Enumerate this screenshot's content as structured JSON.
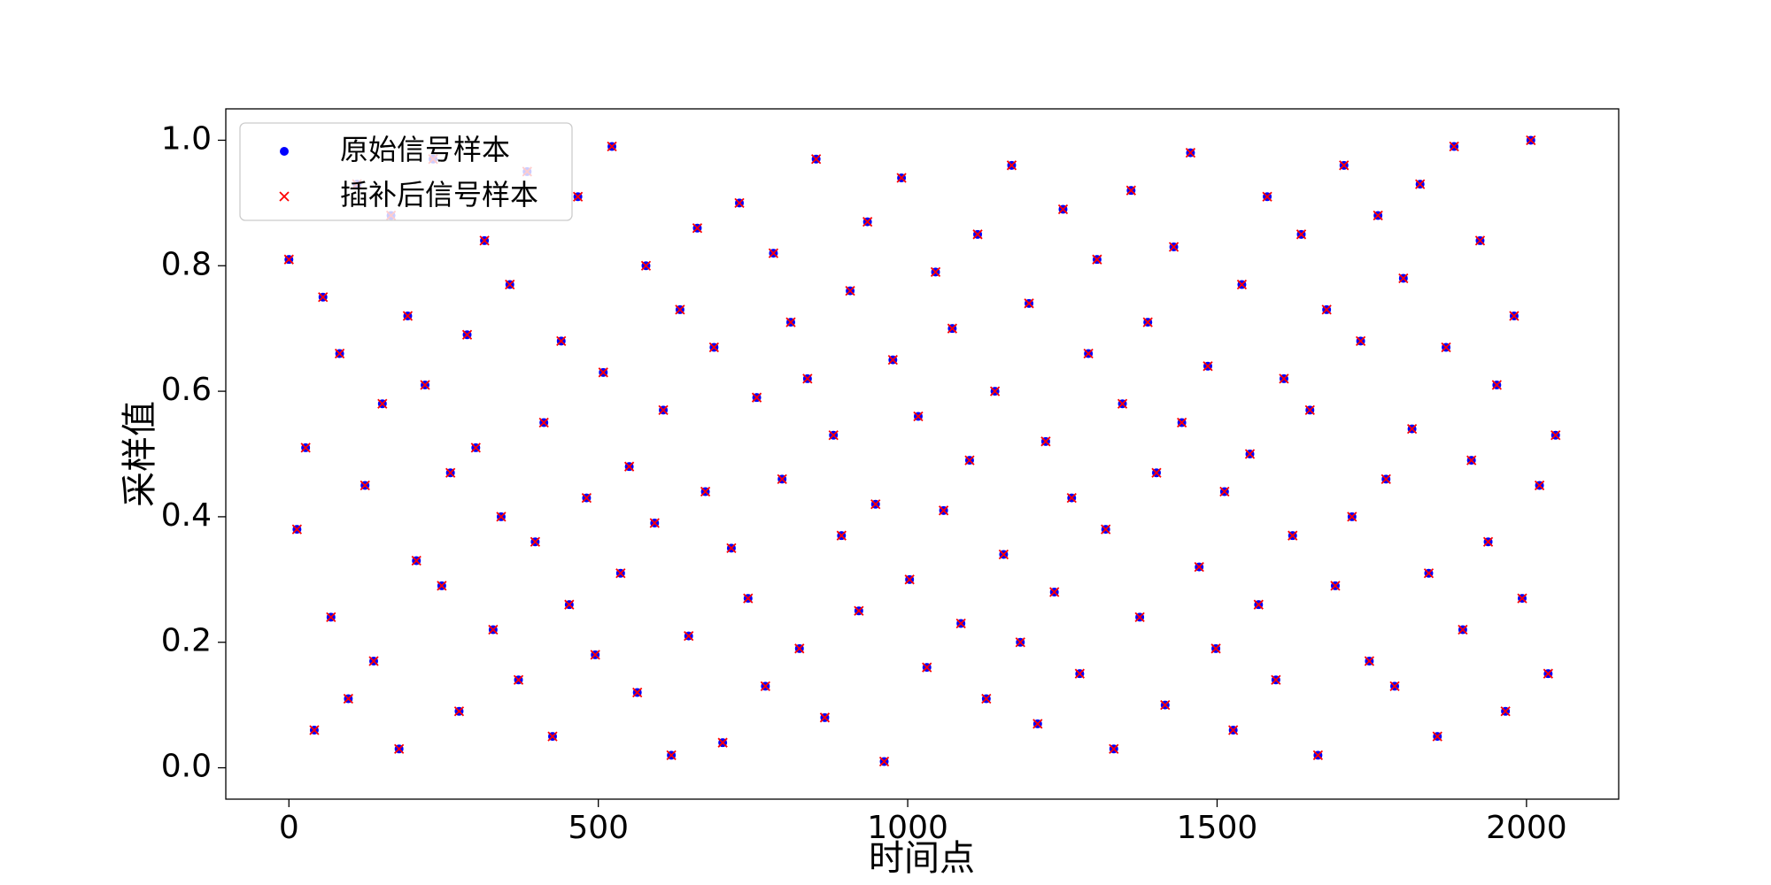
{
  "chart_data": {
    "type": "scatter",
    "xlabel": "时间点",
    "ylabel": "采样值",
    "x": [
      0,
      13,
      27,
      41,
      55,
      68,
      82,
      96,
      110,
      123,
      137,
      151,
      165,
      178,
      192,
      206,
      220,
      233,
      247,
      261,
      275,
      288,
      302,
      316,
      330,
      343,
      357,
      371,
      385,
      398,
      412,
      426,
      440,
      453,
      467,
      481,
      495,
      508,
      522,
      536,
      550,
      563,
      577,
      591,
      605,
      618,
      632,
      646,
      660,
      673,
      687,
      701,
      715,
      728,
      742,
      756,
      770,
      783,
      797,
      811,
      825,
      838,
      852,
      866,
      880,
      893,
      907,
      921,
      935,
      948,
      962,
      976,
      990,
      1003,
      1017,
      1031,
      1045,
      1058,
      1072,
      1086,
      1100,
      1113,
      1127,
      1141,
      1155,
      1168,
      1182,
      1196,
      1210,
      1223,
      1237,
      1251,
      1265,
      1278,
      1292,
      1306,
      1320,
      1333,
      1347,
      1361,
      1375,
      1388,
      1402,
      1416,
      1430,
      1443,
      1457,
      1471,
      1485,
      1498,
      1512,
      1526,
      1540,
      1553,
      1567,
      1581,
      1595,
      1608,
      1622,
      1636,
      1650,
      1663,
      1677,
      1691,
      1705,
      1718,
      1732,
      1746,
      1760,
      1773,
      1787,
      1801,
      1815,
      1828,
      1842,
      1856,
      1870,
      1883,
      1897,
      1911,
      1925,
      1938,
      1952,
      1966,
      1980,
      1993,
      2007,
      2021,
      2035,
      2047
    ],
    "series": [
      {
        "name": "原始信号样本",
        "color": "#0000ff",
        "marker": "circle",
        "values": [
          0.81,
          0.38,
          0.51,
          0.06,
          0.75,
          0.24,
          0.66,
          0.11,
          0.93,
          0.45,
          0.17,
          0.58,
          0.88,
          0.03,
          0.72,
          0.33,
          0.61,
          0.97,
          0.29,
          0.47,
          0.09,
          0.69,
          0.51,
          0.84,
          0.22,
          0.4,
          0.77,
          0.14,
          0.95,
          0.36,
          0.55,
          0.05,
          0.68,
          0.26,
          0.91,
          0.43,
          0.18,
          0.63,
          0.99,
          0.31,
          0.48,
          0.12,
          0.8,
          0.39,
          0.57,
          0.02,
          0.73,
          0.21,
          0.86,
          0.44,
          0.67,
          0.04,
          0.35,
          0.9,
          0.27,
          0.59,
          0.13,
          0.82,
          0.46,
          0.71,
          0.19,
          0.62,
          0.97,
          0.08,
          0.53,
          0.37,
          0.76,
          0.25,
          0.87,
          0.42,
          0.01,
          0.65,
          0.94,
          0.3,
          0.56,
          0.16,
          0.79,
          0.41,
          0.7,
          0.23,
          0.49,
          0.85,
          0.11,
          0.6,
          0.34,
          0.96,
          0.2,
          0.74,
          0.07,
          0.52,
          0.28,
          0.89,
          0.43,
          0.15,
          0.66,
          0.81,
          0.38,
          0.03,
          0.58,
          0.92,
          0.24,
          0.71,
          0.47,
          0.1,
          0.83,
          0.55,
          0.98,
          0.32,
          0.64,
          0.19,
          0.44,
          0.06,
          0.77,
          0.5,
          0.26,
          0.91,
          0.14,
          0.62,
          0.37,
          0.85,
          0.57,
          0.02,
          0.73,
          0.29,
          0.96,
          0.4,
          0.68,
          0.17,
          0.88,
          0.46,
          0.13,
          0.78,
          0.54,
          0.93,
          0.31,
          0.05,
          0.67,
          0.99,
          0.22,
          0.49,
          0.84,
          0.36,
          0.61,
          0.09,
          0.72,
          0.27,
          1.0,
          0.45,
          0.15,
          0.53
        ]
      },
      {
        "name": "插补后信号样本",
        "color": "#ff0000",
        "marker": "x",
        "values": [
          0.81,
          0.38,
          0.51,
          0.06,
          0.75,
          0.24,
          0.66,
          0.11,
          0.93,
          0.45,
          0.17,
          0.58,
          0.88,
          0.03,
          0.72,
          0.33,
          0.61,
          0.97,
          0.29,
          0.47,
          0.09,
          0.69,
          0.51,
          0.84,
          0.22,
          0.4,
          0.77,
          0.14,
          0.95,
          0.36,
          0.55,
          0.05,
          0.68,
          0.26,
          0.91,
          0.43,
          0.18,
          0.63,
          0.99,
          0.31,
          0.48,
          0.12,
          0.8,
          0.39,
          0.57,
          0.02,
          0.73,
          0.21,
          0.86,
          0.44,
          0.67,
          0.04,
          0.35,
          0.9,
          0.27,
          0.59,
          0.13,
          0.82,
          0.46,
          0.71,
          0.19,
          0.62,
          0.97,
          0.08,
          0.53,
          0.37,
          0.76,
          0.25,
          0.87,
          0.42,
          0.01,
          0.65,
          0.94,
          0.3,
          0.56,
          0.16,
          0.79,
          0.41,
          0.7,
          0.23,
          0.49,
          0.85,
          0.11,
          0.6,
          0.34,
          0.96,
          0.2,
          0.74,
          0.07,
          0.52,
          0.28,
          0.89,
          0.43,
          0.15,
          0.66,
          0.81,
          0.38,
          0.03,
          0.58,
          0.92,
          0.24,
          0.71,
          0.47,
          0.1,
          0.83,
          0.55,
          0.98,
          0.32,
          0.64,
          0.19,
          0.44,
          0.06,
          0.77,
          0.5,
          0.26,
          0.91,
          0.14,
          0.62,
          0.37,
          0.85,
          0.57,
          0.02,
          0.73,
          0.29,
          0.96,
          0.4,
          0.68,
          0.17,
          0.88,
          0.46,
          0.13,
          0.78,
          0.54,
          0.93,
          0.31,
          0.05,
          0.67,
          0.99,
          0.22,
          0.49,
          0.84,
          0.36,
          0.61,
          0.09,
          0.72,
          0.27,
          1.0,
          0.45,
          0.15,
          0.53
        ]
      }
    ],
    "xlim": [
      -102,
      2149
    ],
    "ylim": [
      -0.05,
      1.05
    ],
    "xticks": [
      0,
      500,
      1000,
      1500,
      2000
    ],
    "yticks": [
      {
        "value": 0,
        "label": "0.0"
      },
      0.2,
      0.4,
      0.6,
      0.8,
      {
        "value": 1,
        "label": "1.0"
      }
    ],
    "legend": "upper left"
  }
}
